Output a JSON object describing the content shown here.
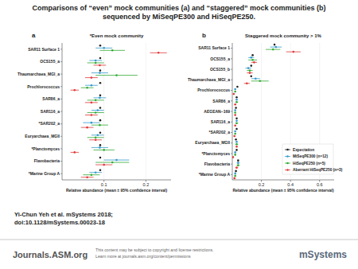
{
  "title_lines": [
    "Comparisons of “even” mock communities (a) and “staggered” mock communities (b)",
    "sequenced by MiSeqPE300 and HiSeqPE250."
  ],
  "citation": [
    "Yi-Chun Yeh et al. mSystems 2018;",
    "doi:10.1128/mSystems.00023-18"
  ],
  "footer": {
    "site": "Journals.ASM.org",
    "notice": [
      "This content may be subject to copyright and license restrictions.",
      "Learn more at journals.asm.org/content/permissions"
    ],
    "journal": "mSystems"
  },
  "chart_data": [
    {
      "type": "dot",
      "orientation": "horizontal",
      "panel_label": "a",
      "title": "*Even mock community",
      "xlabel": "Relative abundance (mean ± 95% confidence interval)",
      "categories": [
        "SAR11 Surface 1",
        "OCS155_a",
        "Thaumarchaea_MGI_a",
        "Prochlorococcus",
        "SAR86_a",
        "SAR116_a",
        "*SAR202_a",
        "Euryarchaea_MGII",
        "*Planctomyces",
        "Flavobacteria",
        "*Marine Group A"
      ],
      "series": [
        {
          "color": "#222222",
          "values": [
            0.091,
            0.091,
            0.091,
            0.091,
            0.091,
            0.091,
            0.091,
            0.091,
            0.091,
            0.091,
            0.091
          ]
        },
        {
          "color": "#3399cc",
          "values": [
            0.1,
            0.08,
            0.09,
            0.07,
            0.09,
            0.085,
            0.07,
            0.085,
            0.09,
            0.13,
            0.08
          ],
          "errors": [
            0.02,
            0.015,
            0.02,
            0.015,
            0.015,
            0.015,
            0.02,
            0.015,
            0.02,
            0.03,
            0.015
          ]
        },
        {
          "color": "#33aa33",
          "values": [
            0.12,
            0.08,
            0.13,
            0.06,
            0.08,
            0.08,
            0.09,
            0.08,
            0.1,
            0.12,
            0.07
          ],
          "errors": [
            0.03,
            0.02,
            0.05,
            0.015,
            0.02,
            0.02,
            0.02,
            0.02,
            0.025,
            0.04,
            0.02
          ]
        },
        {
          "color": "#e03a3a",
          "values": [
            0.23,
            0.09,
            0.07,
            0.03,
            0.07,
            0.07,
            0.06,
            0.08,
            0.03,
            0.1,
            0.06
          ],
          "errors": [
            0.02,
            0.015,
            0.015,
            0.01,
            0.015,
            0.015,
            0.015,
            0.015,
            0.01,
            0.02,
            0.015
          ]
        }
      ],
      "xlim": [
        0,
        0.26
      ],
      "xticks": [
        0.1,
        0.2
      ]
    },
    {
      "type": "dot",
      "orientation": "horizontal",
      "panel_label": "b",
      "title": "Staggered mock community > 1%",
      "xlabel": "Relative abundance (mean ± 95% confidence interval)",
      "categories": [
        "SAR11 Surface 1",
        "OCS155_a",
        "OCS155_b",
        "Thaumarchaea_MGI_a",
        "Prochlorococcus",
        "SAR86_a",
        "AEGEAN−169",
        "SAR116_a",
        "*SAR202_a",
        "Euryarchaea_MGII",
        "*Planctomyces",
        "Flavobacteria",
        "*Marine Group A"
      ],
      "series": [
        {
          "name": "Expectation",
          "color": "#222222",
          "values": [
            0.29,
            0.14,
            0.13,
            0.13,
            0.035,
            0.03,
            0.025,
            0.03,
            0.03,
            0.025,
            0.03,
            0.04,
            0.025
          ]
        },
        {
          "name": "MiSeqPE300 (n=12)",
          "color": "#3399cc",
          "values": [
            0.3,
            0.13,
            0.11,
            0.16,
            0.02,
            0.03,
            0.02,
            0.03,
            0.02,
            0.03,
            0.02,
            0.04,
            0.02
          ],
          "errors": [
            0.04,
            0.02,
            0.02,
            0.03,
            0.005,
            0.005,
            0.005,
            0.005,
            0.005,
            0.005,
            0.005,
            0.01,
            0.005
          ]
        },
        {
          "name": "HiSeqPE250 (n=5)",
          "color": "#33aa33",
          "values": [
            0.28,
            0.14,
            0.12,
            0.19,
            0.02,
            0.03,
            0.02,
            0.03,
            0.02,
            0.03,
            0.02,
            0.04,
            0.02
          ],
          "errors": [
            0.05,
            0.03,
            0.02,
            0.06,
            0.005,
            0.01,
            0.005,
            0.01,
            0.005,
            0.01,
            0.005,
            0.01,
            0.005
          ]
        },
        {
          "name": "Aberrant HiSeqPE250 (n=3)",
          "color": "#e03a3a",
          "values": [
            0.42,
            0.15,
            0.12,
            0.1,
            0.01,
            0.02,
            0.02,
            0.02,
            0.015,
            0.03,
            0.005,
            0.03,
            0.015
          ],
          "errors": [
            0.05,
            0.02,
            0.02,
            0.02,
            0.005,
            0.005,
            0.005,
            0.005,
            0.005,
            0.005,
            0.003,
            0.01,
            0.005
          ]
        }
      ],
      "xlim": [
        0,
        0.7
      ],
      "xticks": [
        0.2,
        0.4,
        0.6
      ],
      "legend": "lower right"
    }
  ]
}
